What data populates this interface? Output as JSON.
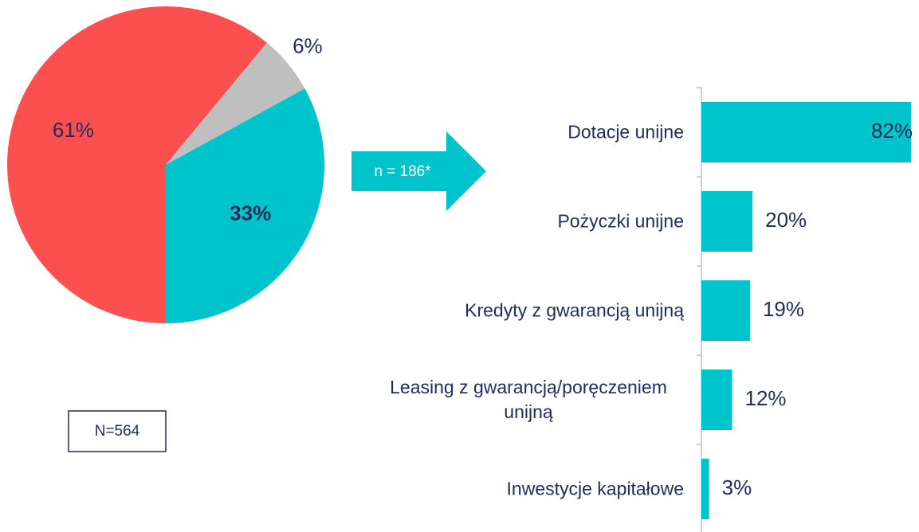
{
  "chart_data": [
    {
      "type": "pie",
      "values": [
        61,
        6,
        33
      ],
      "value_labels": [
        "61%",
        "6%",
        "33%"
      ],
      "colors": [
        "#fc5050",
        "#bfbfbf",
        "#00c4cc"
      ],
      "annotation": "N=564"
    },
    {
      "type": "hbar",
      "categories": [
        "Dotacje unijne",
        "Pożyczki unijne",
        "Kredyty z gwarancją unijną",
        "Leasing z gwarancją/poręczeniem unijną",
        "Inwestycje kapitałowe"
      ],
      "values": [
        82,
        20,
        19,
        12,
        3
      ],
      "value_labels": [
        "82%",
        "20%",
        "19%",
        "12%",
        "3%"
      ],
      "color": "#00c4cc",
      "xlim": [
        0,
        82
      ],
      "annotation": "n = 186*"
    }
  ]
}
